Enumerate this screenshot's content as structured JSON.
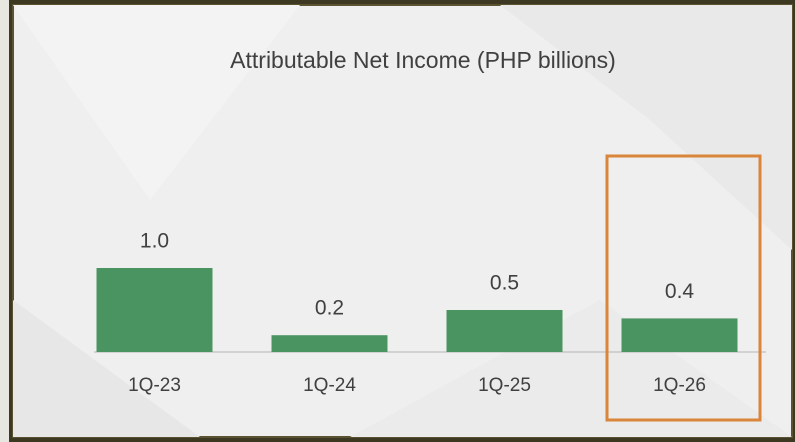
{
  "chart_data": {
    "type": "bar",
    "title": "Attributable Net Income (PHP billions)",
    "categories": [
      "1Q-23",
      "1Q-24",
      "1Q-25",
      "1Q-26"
    ],
    "values": [
      1.0,
      0.2,
      0.5,
      0.4
    ],
    "value_labels": [
      "1.0",
      "0.2",
      "0.5",
      "0.4"
    ],
    "color": "#4a9462"
  }
}
